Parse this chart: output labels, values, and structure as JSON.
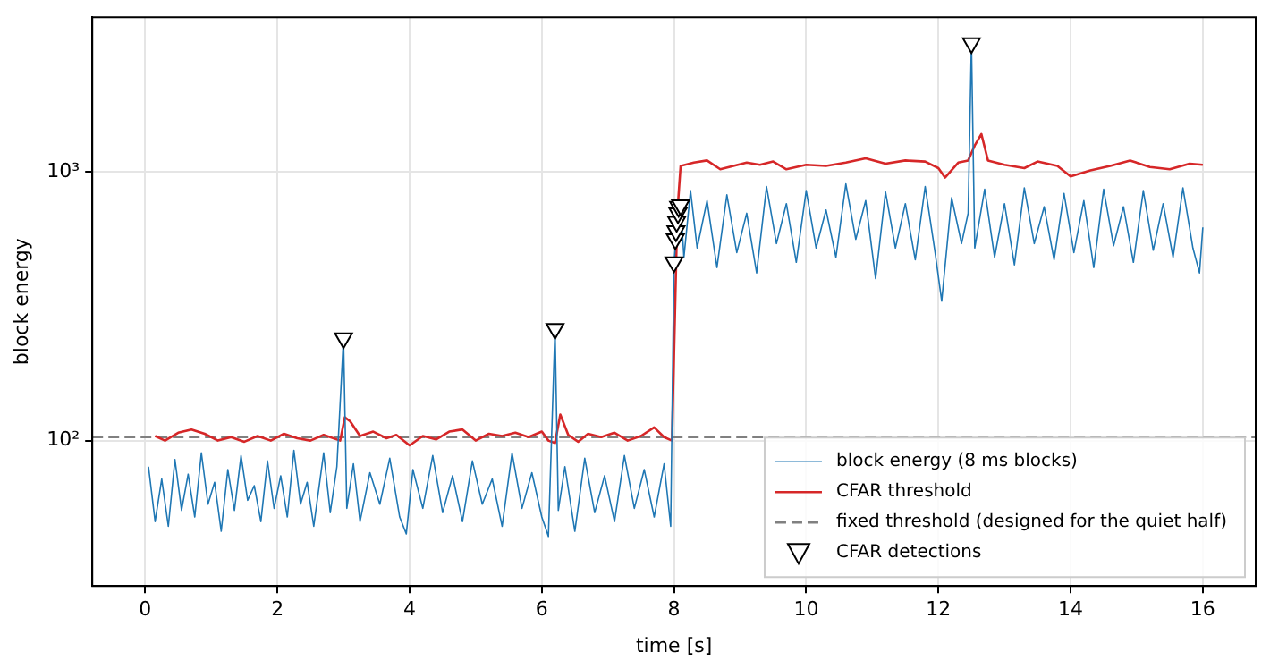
{
  "chart_data": {
    "type": "line",
    "xlabel": "time [s]",
    "ylabel": "block energy",
    "log": "y",
    "grid": true,
    "legend": "bottom right",
    "xlim": [
      -0.8,
      16.8
    ],
    "xticks": [
      0,
      2,
      4,
      6,
      8,
      10,
      12,
      14,
      16
    ],
    "ylim": [
      28.8,
      3750
    ],
    "yticks": [
      {
        "value": 100,
        "label": "10²"
      },
      {
        "value": 1000,
        "label": "10³"
      }
    ],
    "ref_lines": [
      {
        "axis": "y",
        "value": 103,
        "label": "fixed threshold (designed for the quiet half)",
        "color": "#808080",
        "line_style": "dashed"
      }
    ],
    "series": [
      {
        "name": "block energy (8 ms blocks)",
        "color": "#1f77b4",
        "marker": "none",
        "x": [
          0.05,
          0.15,
          0.25,
          0.35,
          0.45,
          0.55,
          0.65,
          0.75,
          0.85,
          0.95,
          1.05,
          1.15,
          1.25,
          1.35,
          1.45,
          1.55,
          1.65,
          1.75,
          1.85,
          1.95,
          2.05,
          2.15,
          2.25,
          2.35,
          2.45,
          2.55,
          2.7,
          2.8,
          2.9,
          3.0,
          3.05,
          3.15,
          3.25,
          3.4,
          3.55,
          3.7,
          3.85,
          3.95,
          4.05,
          4.2,
          4.35,
          4.5,
          4.65,
          4.8,
          4.95,
          5.1,
          5.25,
          5.4,
          5.55,
          5.7,
          5.85,
          6.0,
          6.1,
          6.2,
          6.25,
          6.35,
          6.5,
          6.65,
          6.8,
          6.95,
          7.1,
          7.25,
          7.4,
          7.55,
          7.7,
          7.85,
          7.95,
          8.0,
          8.03,
          8.06,
          8.1,
          8.15,
          8.25,
          8.35,
          8.5,
          8.65,
          8.8,
          8.95,
          9.1,
          9.25,
          9.4,
          9.55,
          9.7,
          9.85,
          10.0,
          10.15,
          10.3,
          10.45,
          10.6,
          10.75,
          10.9,
          11.05,
          11.2,
          11.35,
          11.5,
          11.65,
          11.8,
          11.95,
          12.05,
          12.2,
          12.35,
          12.45,
          12.5,
          12.55,
          12.7,
          12.85,
          13.0,
          13.15,
          13.3,
          13.45,
          13.6,
          13.75,
          13.9,
          14.05,
          14.2,
          14.35,
          14.5,
          14.65,
          14.8,
          14.95,
          15.1,
          15.25,
          15.4,
          15.55,
          15.7,
          15.85,
          15.95,
          16.0
        ],
        "values": [
          80,
          50,
          72,
          48,
          85,
          55,
          75,
          52,
          90,
          58,
          70,
          46,
          78,
          55,
          88,
          60,
          68,
          50,
          84,
          56,
          74,
          52,
          92,
          58,
          70,
          48,
          90,
          54,
          80,
          240,
          56,
          82,
          50,
          76,
          58,
          86,
          52,
          45,
          78,
          56,
          88,
          54,
          74,
          50,
          84,
          58,
          72,
          48,
          90,
          56,
          76,
          52,
          44,
          260,
          55,
          80,
          46,
          86,
          54,
          74,
          50,
          88,
          56,
          78,
          52,
          82,
          48,
          460,
          560,
          700,
          750,
          480,
          850,
          520,
          780,
          440,
          820,
          500,
          700,
          420,
          880,
          540,
          760,
          460,
          850,
          520,
          720,
          480,
          900,
          560,
          780,
          400,
          840,
          520,
          760,
          470,
          880,
          500,
          330,
          800,
          540,
          700,
          3000,
          520,
          860,
          480,
          760,
          450,
          870,
          540,
          740,
          470,
          830,
          500,
          780,
          440,
          860,
          530,
          740,
          460,
          850,
          510,
          760,
          480,
          870,
          520,
          420,
          620
        ]
      },
      {
        "name": "CFAR threshold",
        "color": "#d62728",
        "marker": "none",
        "x": [
          0.15,
          0.3,
          0.5,
          0.7,
          0.9,
          1.1,
          1.3,
          1.5,
          1.7,
          1.9,
          2.1,
          2.3,
          2.5,
          2.7,
          2.95,
          3.02,
          3.1,
          3.25,
          3.45,
          3.65,
          3.8,
          4.0,
          4.2,
          4.4,
          4.6,
          4.8,
          5.0,
          5.2,
          5.4,
          5.6,
          5.8,
          6.0,
          6.1,
          6.2,
          6.28,
          6.4,
          6.55,
          6.7,
          6.9,
          7.1,
          7.3,
          7.5,
          7.7,
          7.85,
          7.97,
          8.05,
          8.1,
          8.3,
          8.5,
          8.7,
          8.9,
          9.1,
          9.3,
          9.5,
          9.7,
          10.0,
          10.3,
          10.6,
          10.9,
          11.2,
          11.5,
          11.8,
          12.0,
          12.1,
          12.3,
          12.45,
          12.55,
          12.65,
          12.75,
          13.0,
          13.3,
          13.5,
          13.8,
          14.0,
          14.3,
          14.6,
          14.9,
          15.2,
          15.5,
          15.8,
          16.0
        ],
        "values": [
          104,
          100,
          107,
          110,
          106,
          100,
          103,
          99,
          104,
          100,
          106,
          102,
          100,
          105,
          100,
          122,
          118,
          104,
          108,
          102,
          105,
          96,
          104,
          101,
          108,
          110,
          100,
          106,
          104,
          107,
          103,
          108,
          100,
          98,
          125,
          105,
          99,
          106,
          103,
          107,
          100,
          104,
          112,
          103,
          100,
          700,
          1050,
          1080,
          1100,
          1020,
          1050,
          1080,
          1060,
          1090,
          1020,
          1060,
          1050,
          1080,
          1120,
          1070,
          1100,
          1090,
          1030,
          950,
          1080,
          1100,
          1250,
          1380,
          1100,
          1060,
          1030,
          1090,
          1050,
          960,
          1010,
          1050,
          1100,
          1040,
          1020,
          1070,
          1060
        ]
      },
      {
        "name": "CFAR detections",
        "color": "#000000",
        "type": "scatter",
        "marker": "triangle",
        "x": [
          3.0,
          6.2,
          8.0,
          8.02,
          8.03,
          8.04,
          8.06,
          8.07,
          8.1,
          12.5
        ],
        "values": [
          240,
          260,
          460,
          560,
          600,
          650,
          700,
          740,
          750,
          3000
        ]
      }
    ]
  }
}
